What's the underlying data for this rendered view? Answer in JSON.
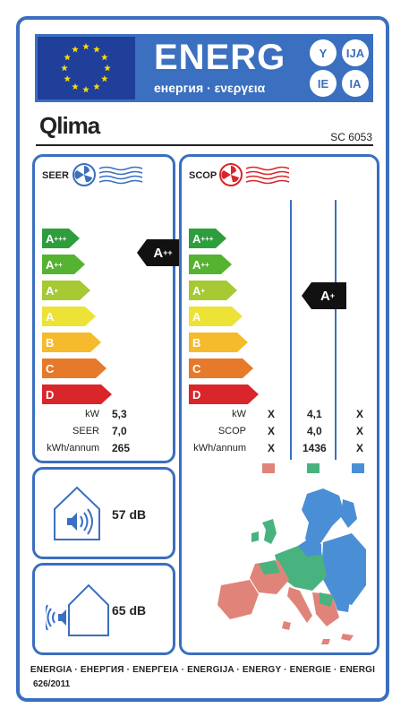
{
  "header": {
    "energy_title": "ENERG",
    "energy_subtitle": "енергия · ενεργεια",
    "lang_codes": [
      "Y",
      "IJA",
      "IE",
      "IA"
    ]
  },
  "brand": {
    "name": "Qlima",
    "model": "SC 6053"
  },
  "seer": {
    "title": "SEER",
    "classes": [
      {
        "base": "A",
        "sup": "+++",
        "color": "#2e9e3c"
      },
      {
        "base": "A",
        "sup": "++",
        "color": "#55b331"
      },
      {
        "base": "A",
        "sup": "+",
        "color": "#a6c934"
      },
      {
        "base": "A",
        "sup": "",
        "color": "#ede337"
      },
      {
        "base": "B",
        "sup": "",
        "color": "#f5bb2d"
      },
      {
        "base": "C",
        "sup": "",
        "color": "#e6792a"
      },
      {
        "base": "D",
        "sup": "",
        "color": "#d9262b"
      }
    ],
    "rating": {
      "base": "A",
      "sup": "++"
    },
    "rows": [
      {
        "label": "kW",
        "value": "5,3"
      },
      {
        "label": "SEER",
        "value": "7,0"
      },
      {
        "label": "kWh/annum",
        "value": "265"
      }
    ]
  },
  "scop": {
    "title": "SCOP",
    "classes": [
      {
        "base": "A",
        "sup": "+++",
        "color": "#2e9e3c"
      },
      {
        "base": "A",
        "sup": "++",
        "color": "#55b331"
      },
      {
        "base": "A",
        "sup": "+",
        "color": "#a6c934"
      },
      {
        "base": "A",
        "sup": "",
        "color": "#ede337"
      },
      {
        "base": "B",
        "sup": "",
        "color": "#f5bb2d"
      },
      {
        "base": "C",
        "sup": "",
        "color": "#e6792a"
      },
      {
        "base": "D",
        "sup": "",
        "color": "#d9262b"
      }
    ],
    "rating": {
      "base": "A",
      "sup": "+"
    },
    "rows": [
      {
        "label": "kW",
        "warm": "X",
        "avg": "4,1",
        "cold": "X"
      },
      {
        "label": "SCOP",
        "warm": "X",
        "avg": "4,0",
        "cold": "X"
      },
      {
        "label": "kWh/annum",
        "warm": "X",
        "avg": "1436",
        "cold": "X"
      }
    ],
    "climate_colors": {
      "warm": "#e0847a",
      "average": "#49b37f",
      "cold": "#4a8fd6"
    }
  },
  "noise": {
    "indoor": "57 dB",
    "outdoor": "65 dB"
  },
  "footer": {
    "languages": "ENERGIA · ЕНЕРГИЯ · ΕΝΕΡΓΕΙΑ · ENERGIJA · ENERGY · ENERGIE · ENERGI",
    "regulation": "626/2011"
  }
}
